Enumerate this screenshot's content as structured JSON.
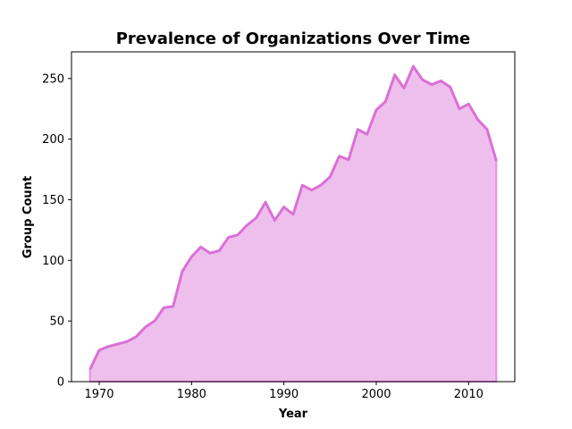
{
  "chart_data": {
    "type": "area",
    "title": "Prevalence of Organizations Over Time",
    "xlabel": "Year",
    "ylabel": "Group Count",
    "xlim": [
      1967,
      2015
    ],
    "ylim": [
      0,
      272
    ],
    "xticks": [
      1970,
      1980,
      1990,
      2000,
      2010
    ],
    "yticks": [
      0,
      50,
      100,
      150,
      200,
      250
    ],
    "grid": false,
    "legend": "none",
    "line_color": "#da70d6",
    "fill_color": "#da70d6",
    "series": [
      {
        "x": [
          1969,
          1970,
          1971,
          1972,
          1973,
          1974,
          1975,
          1976,
          1977,
          1978,
          1979,
          1980,
          1981,
          1982,
          1983,
          1984,
          1985,
          1986,
          1987,
          1988,
          1989,
          1990,
          1991,
          1992,
          1993,
          1994,
          1995,
          1996,
          1997,
          1998,
          1999,
          2000,
          2001,
          2002,
          2003,
          2004,
          2005,
          2006,
          2007,
          2008,
          2009,
          2010,
          2011,
          2012,
          2013
        ],
        "y": [
          10,
          26,
          29,
          31,
          33,
          37,
          45,
          50,
          61,
          62,
          91,
          103,
          111,
          106,
          108,
          119,
          121,
          129,
          135,
          148,
          133,
          144,
          138,
          162,
          158,
          162,
          169,
          186,
          183,
          208,
          204,
          224,
          231,
          253,
          242,
          260,
          249,
          245,
          248,
          243,
          225,
          229,
          216,
          208,
          182
        ]
      }
    ]
  }
}
